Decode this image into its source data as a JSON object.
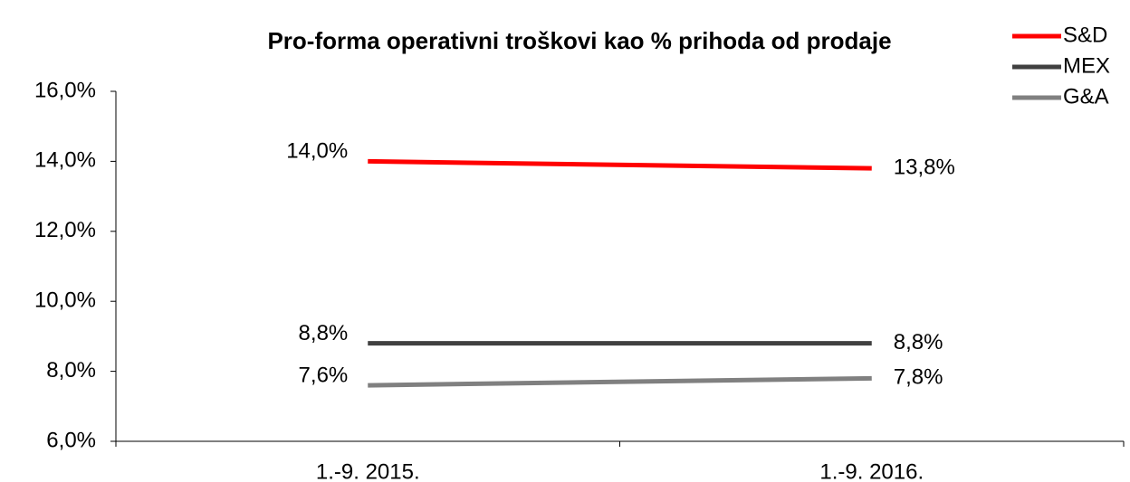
{
  "chart_data": {
    "type": "line",
    "title": "Pro-forma operativni troškovi kao % prihoda od prodaje",
    "categories": [
      "1.-9. 2015.",
      "1.-9. 2016."
    ],
    "series": [
      {
        "name": "S&D",
        "color": "#ff0000",
        "values": [
          14.0,
          13.8
        ],
        "value_labels": [
          "14,0%",
          "13,8%"
        ]
      },
      {
        "name": "MEX",
        "color": "#404040",
        "values": [
          8.8,
          8.8
        ],
        "value_labels": [
          "8,8%",
          "8,8%"
        ]
      },
      {
        "name": "G&A",
        "color": "#808080",
        "values": [
          7.6,
          7.8
        ],
        "value_labels": [
          "7,6%",
          "7,8%"
        ]
      }
    ],
    "ylim": [
      6,
      16
    ],
    "yticks": [
      {
        "value": 6,
        "label": "6,0%"
      },
      {
        "value": 8,
        "label": "8,0%"
      },
      {
        "value": 10,
        "label": "10,0%"
      },
      {
        "value": 12,
        "label": "12,0%"
      },
      {
        "value": 14,
        "label": "14,0%"
      },
      {
        "value": 16,
        "label": "16,0%"
      }
    ],
    "legend": "top-right"
  }
}
